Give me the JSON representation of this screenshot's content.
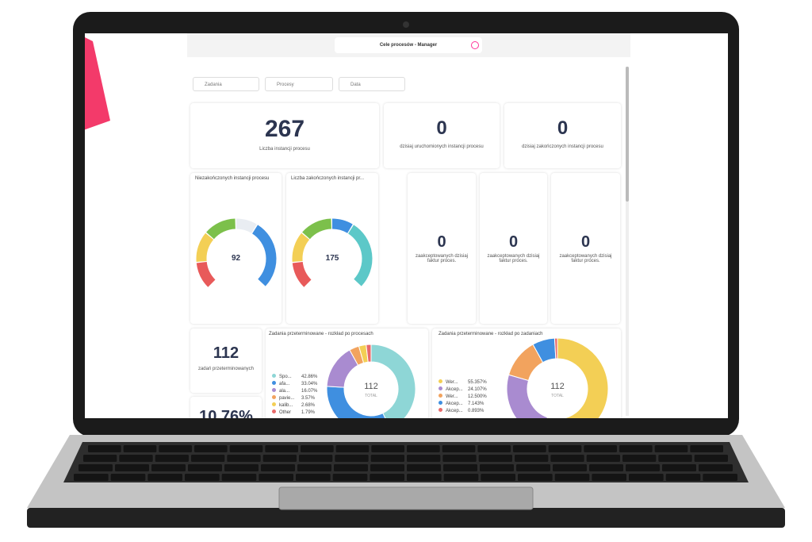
{
  "header": {
    "title": "Cele procesów - Manager"
  },
  "filters": [
    "Zadania",
    "Procesy",
    "Data"
  ],
  "kpis": [
    {
      "value": "267",
      "label": "Liczba instancji procesu"
    },
    {
      "value": "0",
      "label": "dzisiaj uruchomionych instancji procesu"
    },
    {
      "value": "0",
      "label": "dzisiaj zakończonych instancji procesu"
    }
  ],
  "gauges": [
    {
      "title": "Niezakończonych instancji procesu",
      "value": "92"
    },
    {
      "title": "Liczba zakończonych instancji pr...",
      "value": "175"
    }
  ],
  "small_kpis": [
    {
      "value": "0",
      "label": "zaakceptowanych dzisiaj faktur proces."
    },
    {
      "value": "0",
      "label": "zaakceptowanych dzisiaj faktur proces."
    },
    {
      "value": "0",
      "label": "zaakceptowanych dzisiaj faktur proces."
    }
  ],
  "overdue": {
    "value": "112",
    "label": "zadań przeterminowanych"
  },
  "ratio": {
    "value": "10.76%"
  },
  "donuts": [
    {
      "title": "Zadania przeterminowane - rozkład po procesach",
      "total": "112",
      "total_label": "TOTAL",
      "series": [
        {
          "name": "Spo...",
          "color": "#8ed6d6"
        },
        {
          "name": "afa...",
          "color": "#3f8fe0"
        },
        {
          "name": "ala...",
          "color": "#a98bd0"
        },
        {
          "name": "pavie...",
          "color": "#f2a35e"
        },
        {
          "name": "kalib...",
          "color": "#f3cf55"
        },
        {
          "name": "Other",
          "color": "#e86a6a"
        }
      ],
      "values": [
        42.86,
        33.04,
        16.07,
        3.57,
        2.68,
        1.79
      ],
      "value_labels": [
        "42.86%",
        "33.04%",
        "16.07%",
        "3.57%",
        "2.68%",
        "1.79%"
      ]
    },
    {
      "title": "Zadania przeterminowane - rozkład po zadaniach",
      "total": "112",
      "total_label": "TOTAL",
      "series": [
        {
          "name": "Wer...",
          "color": "#f3cf55"
        },
        {
          "name": "Akcep...",
          "color": "#a98bd0"
        },
        {
          "name": "Wer...",
          "color": "#f2a35e"
        },
        {
          "name": "Akcep...",
          "color": "#3f8fe0"
        },
        {
          "name": "Akcep...",
          "color": "#e86a6a"
        }
      ],
      "values": [
        55.357,
        24.107,
        12.5,
        7.143,
        0.893
      ],
      "value_labels": [
        "55.357%",
        "24.107%",
        "12.500%",
        "7.143%",
        "0.893%"
      ]
    }
  ]
}
